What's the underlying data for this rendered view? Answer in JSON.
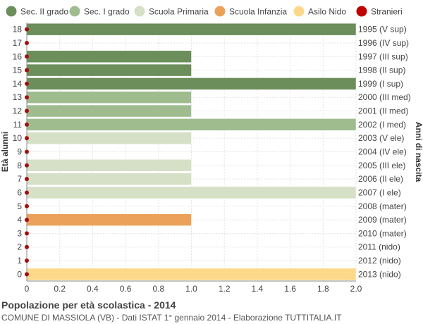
{
  "chart_data": {
    "type": "bar",
    "orientation": "horizontal",
    "title": "Popolazione per età scolastica - 2014",
    "subtitle": "COMUNE DI MASSIOLA (VB) - Dati ISTAT 1° gennaio 2014 - Elaborazione TUTTITALIA.IT",
    "ylabel": "Età alunni",
    "y2label": "Anni di nascita",
    "xlim": [
      0,
      2.0
    ],
    "xticks": [
      "0",
      "0.2",
      "0.4",
      "0.6",
      "0.8",
      "1.0",
      "1.2",
      "1.4",
      "1.6",
      "1.8",
      "2.0"
    ],
    "grid": true,
    "legend_position": "top",
    "legend": [
      {
        "name": "Sec. II grado",
        "color": "#6b8e5a"
      },
      {
        "name": "Sec. I grado",
        "color": "#9fbc8f"
      },
      {
        "name": "Scuola Primaria",
        "color": "#d5e0c6"
      },
      {
        "name": "Scuola Infanzia",
        "color": "#eba15a"
      },
      {
        "name": "Asilo Nido",
        "color": "#fcd98a"
      },
      {
        "name": "Stranieri",
        "color": "#c00000"
      }
    ],
    "rows": [
      {
        "age": "18",
        "birth": "1995 (V sup)",
        "value": 2,
        "category": "Sec. II grado",
        "stranieri": 0
      },
      {
        "age": "17",
        "birth": "1996 (IV sup)",
        "value": 0,
        "category": "Sec. II grado",
        "stranieri": 0
      },
      {
        "age": "16",
        "birth": "1997 (III sup)",
        "value": 1,
        "category": "Sec. II grado",
        "stranieri": 0
      },
      {
        "age": "15",
        "birth": "1998 (II sup)",
        "value": 1,
        "category": "Sec. II grado",
        "stranieri": 0
      },
      {
        "age": "14",
        "birth": "1999 (I sup)",
        "value": 2,
        "category": "Sec. II grado",
        "stranieri": 0
      },
      {
        "age": "13",
        "birth": "2000 (III med)",
        "value": 1,
        "category": "Sec. I grado",
        "stranieri": 0
      },
      {
        "age": "12",
        "birth": "2001 (II med)",
        "value": 1,
        "category": "Sec. I grado",
        "stranieri": 0
      },
      {
        "age": "11",
        "birth": "2002 (I med)",
        "value": 2,
        "category": "Sec. I grado",
        "stranieri": 0
      },
      {
        "age": "10",
        "birth": "2003 (V ele)",
        "value": 1,
        "category": "Scuola Primaria",
        "stranieri": 0
      },
      {
        "age": "9",
        "birth": "2004 (IV ele)",
        "value": 0,
        "category": "Scuola Primaria",
        "stranieri": 0
      },
      {
        "age": "8",
        "birth": "2005 (III ele)",
        "value": 1,
        "category": "Scuola Primaria",
        "stranieri": 0
      },
      {
        "age": "7",
        "birth": "2006 (II ele)",
        "value": 1,
        "category": "Scuola Primaria",
        "stranieri": 0
      },
      {
        "age": "6",
        "birth": "2007 (I ele)",
        "value": 2,
        "category": "Scuola Primaria",
        "stranieri": 0
      },
      {
        "age": "5",
        "birth": "2008 (mater)",
        "value": 0,
        "category": "Scuola Infanzia",
        "stranieri": 0
      },
      {
        "age": "4",
        "birth": "2009 (mater)",
        "value": 1,
        "category": "Scuola Infanzia",
        "stranieri": 0
      },
      {
        "age": "3",
        "birth": "2010 (mater)",
        "value": 0,
        "category": "Scuola Infanzia",
        "stranieri": 0
      },
      {
        "age": "2",
        "birth": "2011 (nido)",
        "value": 0,
        "category": "Asilo Nido",
        "stranieri": 0
      },
      {
        "age": "1",
        "birth": "2012 (nido)",
        "value": 0,
        "category": "Asilo Nido",
        "stranieri": 0
      },
      {
        "age": "0",
        "birth": "2013 (nido)",
        "value": 2,
        "category": "Asilo Nido",
        "stranieri": 0
      }
    ]
  }
}
